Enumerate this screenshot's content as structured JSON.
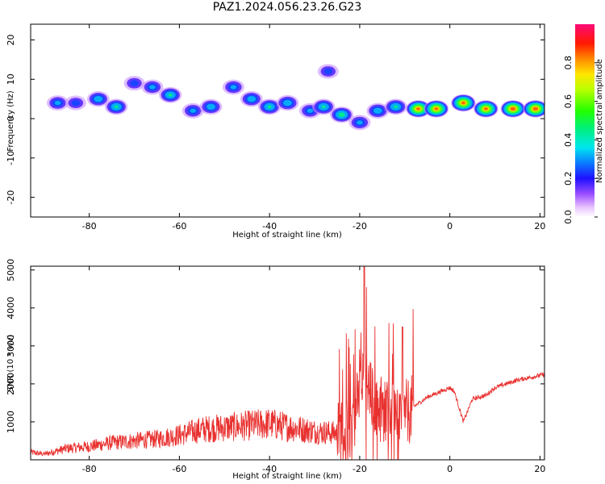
{
  "title": "PAZ1.2024.056.23.26.G23",
  "chart_data": [
    {
      "type": "heatmap",
      "title": "PAZ1.2024.056.23.26.G23",
      "xlabel": "Height of straight line (km)",
      "ylabel": "Frequency (Hz)",
      "xlim": [
        -93,
        21
      ],
      "ylim": [
        -25,
        24
      ],
      "xticks": [
        -80,
        -60,
        -40,
        -20,
        0,
        20
      ],
      "yticks": [
        -20,
        -10,
        0,
        10,
        20
      ],
      "colorbar": {
        "label": "Normalized spectral amplitude",
        "range": [
          0,
          1
        ],
        "ticks": [
          0.0,
          0.2,
          0.4,
          0.6,
          0.8
        ],
        "colormap": "gist_ncar-like (white → violet → blue → cyan → green → yellow → orange → red → magenta)"
      },
      "blobs": [
        {
          "x": -87,
          "y": 4,
          "v": 0.35
        },
        {
          "x": -83,
          "y": 4,
          "v": 0.3
        },
        {
          "x": -78,
          "y": 5,
          "v": 0.4
        },
        {
          "x": -74,
          "y": 3,
          "v": 0.45
        },
        {
          "x": -70,
          "y": 9,
          "v": 0.3
        },
        {
          "x": -66,
          "y": 8,
          "v": 0.35
        },
        {
          "x": -62,
          "y": 6,
          "v": 0.45
        },
        {
          "x": -57,
          "y": 2,
          "v": 0.35
        },
        {
          "x": -53,
          "y": 3,
          "v": 0.4
        },
        {
          "x": -48,
          "y": 8,
          "v": 0.35
        },
        {
          "x": -44,
          "y": 5,
          "v": 0.4
        },
        {
          "x": -40,
          "y": 3,
          "v": 0.45
        },
        {
          "x": -36,
          "y": 4,
          "v": 0.4
        },
        {
          "x": -31,
          "y": 2,
          "v": 0.35
        },
        {
          "x": -28,
          "y": 3,
          "v": 0.45
        },
        {
          "x": -27,
          "y": 12,
          "v": 0.3
        },
        {
          "x": -24,
          "y": 1,
          "v": 0.5
        },
        {
          "x": -20,
          "y": -1,
          "v": 0.35
        },
        {
          "x": -16,
          "y": 2,
          "v": 0.4
        },
        {
          "x": -12,
          "y": 3,
          "v": 0.45
        },
        {
          "x": -7,
          "y": 2.5,
          "v": 0.85
        },
        {
          "x": -3,
          "y": 2.5,
          "v": 0.85
        },
        {
          "x": 3,
          "y": 4,
          "v": 0.85
        },
        {
          "x": 8,
          "y": 2.5,
          "v": 0.85
        },
        {
          "x": 14,
          "y": 2.5,
          "v": 0.9
        },
        {
          "x": 19,
          "y": 2.5,
          "v": 0.9
        }
      ]
    },
    {
      "type": "line",
      "xlabel": "Height of straight line (km)",
      "ylabel": "SNR (10 * v/v)",
      "xlim": [
        -93,
        21
      ],
      "ylim": [
        0,
        5100
      ],
      "xticks": [
        -80,
        -60,
        -40,
        -20,
        0,
        20
      ],
      "yticks": [
        1000,
        2000,
        3000,
        4000,
        5000
      ],
      "color": "#e8312f",
      "x": [
        -93,
        -90,
        -85,
        -80,
        -75,
        -70,
        -65,
        -60,
        -55,
        -50,
        -45,
        -40,
        -35,
        -30,
        -25,
        -22,
        -20,
        -19,
        -18,
        -15,
        -12,
        -10,
        -8,
        -5,
        -2,
        0,
        1,
        2,
        3,
        5,
        8,
        10,
        15,
        21
      ],
      "y": [
        200,
        150,
        300,
        350,
        450,
        500,
        550,
        650,
        800,
        850,
        900,
        950,
        850,
        750,
        700,
        900,
        1600,
        2400,
        1800,
        1300,
        1400,
        1200,
        1400,
        1650,
        1800,
        1900,
        1800,
        1400,
        1000,
        1600,
        1700,
        1900,
        2100,
        2250
      ]
    }
  ]
}
